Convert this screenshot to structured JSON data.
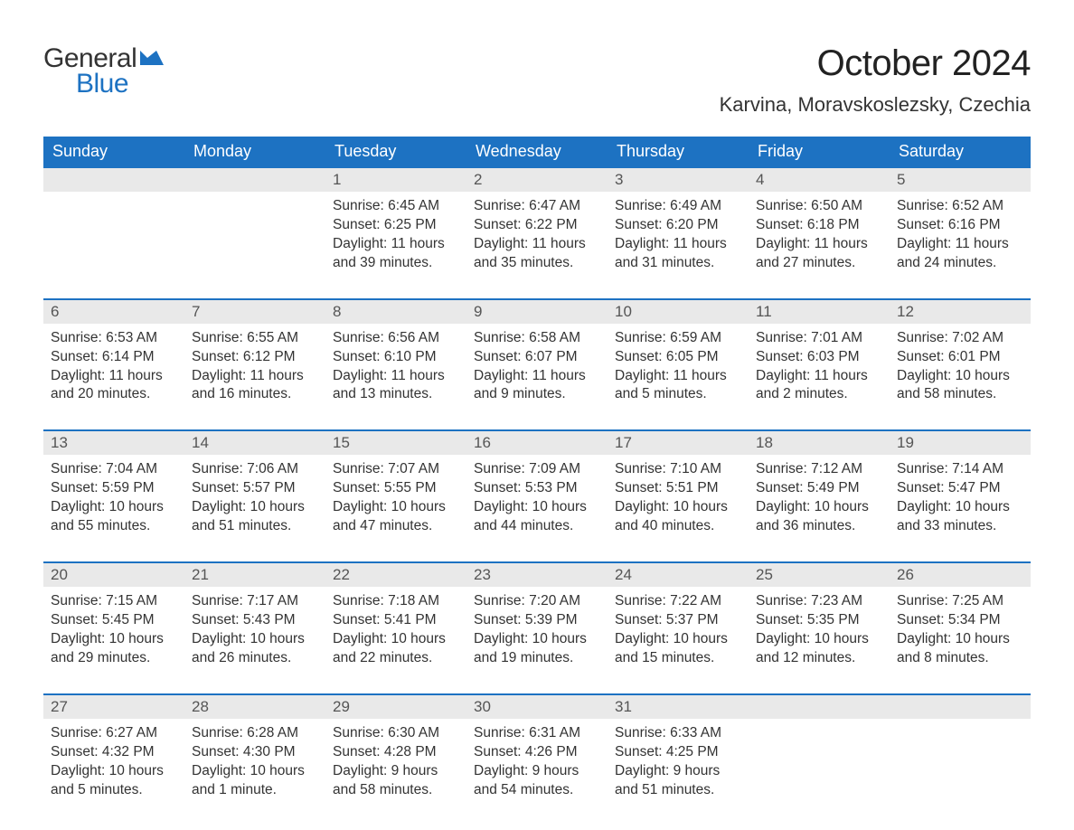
{
  "logo": {
    "word1": "General",
    "word2": "Blue",
    "flag_color": "#1d72c2"
  },
  "title": "October 2024",
  "location": "Karvina, Moravskoslezsky, Czechia",
  "colors": {
    "header_bg": "#1d72c2",
    "header_text": "#ffffff",
    "daynum_bg": "#e9e9e9",
    "daynum_text": "#555555",
    "body_text": "#333333",
    "rule": "#1d72c2",
    "page_bg": "#ffffff"
  },
  "fonts": {
    "title_pt": 40,
    "location_pt": 22,
    "dayhead_pt": 18,
    "daynum_pt": 17,
    "cell_pt": 15.5
  },
  "day_names": [
    "Sunday",
    "Monday",
    "Tuesday",
    "Wednesday",
    "Thursday",
    "Friday",
    "Saturday"
  ],
  "labels": {
    "sunrise": "Sunrise:",
    "sunset": "Sunset:",
    "daylight": "Daylight:"
  },
  "weeks": [
    [
      null,
      null,
      {
        "n": "1",
        "sunrise": "6:45 AM",
        "sunset": "6:25 PM",
        "daylight": "11 hours and 39 minutes."
      },
      {
        "n": "2",
        "sunrise": "6:47 AM",
        "sunset": "6:22 PM",
        "daylight": "11 hours and 35 minutes."
      },
      {
        "n": "3",
        "sunrise": "6:49 AM",
        "sunset": "6:20 PM",
        "daylight": "11 hours and 31 minutes."
      },
      {
        "n": "4",
        "sunrise": "6:50 AM",
        "sunset": "6:18 PM",
        "daylight": "11 hours and 27 minutes."
      },
      {
        "n": "5",
        "sunrise": "6:52 AM",
        "sunset": "6:16 PM",
        "daylight": "11 hours and 24 minutes."
      }
    ],
    [
      {
        "n": "6",
        "sunrise": "6:53 AM",
        "sunset": "6:14 PM",
        "daylight": "11 hours and 20 minutes."
      },
      {
        "n": "7",
        "sunrise": "6:55 AM",
        "sunset": "6:12 PM",
        "daylight": "11 hours and 16 minutes."
      },
      {
        "n": "8",
        "sunrise": "6:56 AM",
        "sunset": "6:10 PM",
        "daylight": "11 hours and 13 minutes."
      },
      {
        "n": "9",
        "sunrise": "6:58 AM",
        "sunset": "6:07 PM",
        "daylight": "11 hours and 9 minutes."
      },
      {
        "n": "10",
        "sunrise": "6:59 AM",
        "sunset": "6:05 PM",
        "daylight": "11 hours and 5 minutes."
      },
      {
        "n": "11",
        "sunrise": "7:01 AM",
        "sunset": "6:03 PM",
        "daylight": "11 hours and 2 minutes."
      },
      {
        "n": "12",
        "sunrise": "7:02 AM",
        "sunset": "6:01 PM",
        "daylight": "10 hours and 58 minutes."
      }
    ],
    [
      {
        "n": "13",
        "sunrise": "7:04 AM",
        "sunset": "5:59 PM",
        "daylight": "10 hours and 55 minutes."
      },
      {
        "n": "14",
        "sunrise": "7:06 AM",
        "sunset": "5:57 PM",
        "daylight": "10 hours and 51 minutes."
      },
      {
        "n": "15",
        "sunrise": "7:07 AM",
        "sunset": "5:55 PM",
        "daylight": "10 hours and 47 minutes."
      },
      {
        "n": "16",
        "sunrise": "7:09 AM",
        "sunset": "5:53 PM",
        "daylight": "10 hours and 44 minutes."
      },
      {
        "n": "17",
        "sunrise": "7:10 AM",
        "sunset": "5:51 PM",
        "daylight": "10 hours and 40 minutes."
      },
      {
        "n": "18",
        "sunrise": "7:12 AM",
        "sunset": "5:49 PM",
        "daylight": "10 hours and 36 minutes."
      },
      {
        "n": "19",
        "sunrise": "7:14 AM",
        "sunset": "5:47 PM",
        "daylight": "10 hours and 33 minutes."
      }
    ],
    [
      {
        "n": "20",
        "sunrise": "7:15 AM",
        "sunset": "5:45 PM",
        "daylight": "10 hours and 29 minutes."
      },
      {
        "n": "21",
        "sunrise": "7:17 AM",
        "sunset": "5:43 PM",
        "daylight": "10 hours and 26 minutes."
      },
      {
        "n": "22",
        "sunrise": "7:18 AM",
        "sunset": "5:41 PM",
        "daylight": "10 hours and 22 minutes."
      },
      {
        "n": "23",
        "sunrise": "7:20 AM",
        "sunset": "5:39 PM",
        "daylight": "10 hours and 19 minutes."
      },
      {
        "n": "24",
        "sunrise": "7:22 AM",
        "sunset": "5:37 PM",
        "daylight": "10 hours and 15 minutes."
      },
      {
        "n": "25",
        "sunrise": "7:23 AM",
        "sunset": "5:35 PM",
        "daylight": "10 hours and 12 minutes."
      },
      {
        "n": "26",
        "sunrise": "7:25 AM",
        "sunset": "5:34 PM",
        "daylight": "10 hours and 8 minutes."
      }
    ],
    [
      {
        "n": "27",
        "sunrise": "6:27 AM",
        "sunset": "4:32 PM",
        "daylight": "10 hours and 5 minutes."
      },
      {
        "n": "28",
        "sunrise": "6:28 AM",
        "sunset": "4:30 PM",
        "daylight": "10 hours and 1 minute."
      },
      {
        "n": "29",
        "sunrise": "6:30 AM",
        "sunset": "4:28 PM",
        "daylight": "9 hours and 58 minutes."
      },
      {
        "n": "30",
        "sunrise": "6:31 AM",
        "sunset": "4:26 PM",
        "daylight": "9 hours and 54 minutes."
      },
      {
        "n": "31",
        "sunrise": "6:33 AM",
        "sunset": "4:25 PM",
        "daylight": "9 hours and 51 minutes."
      },
      null,
      null
    ]
  ]
}
